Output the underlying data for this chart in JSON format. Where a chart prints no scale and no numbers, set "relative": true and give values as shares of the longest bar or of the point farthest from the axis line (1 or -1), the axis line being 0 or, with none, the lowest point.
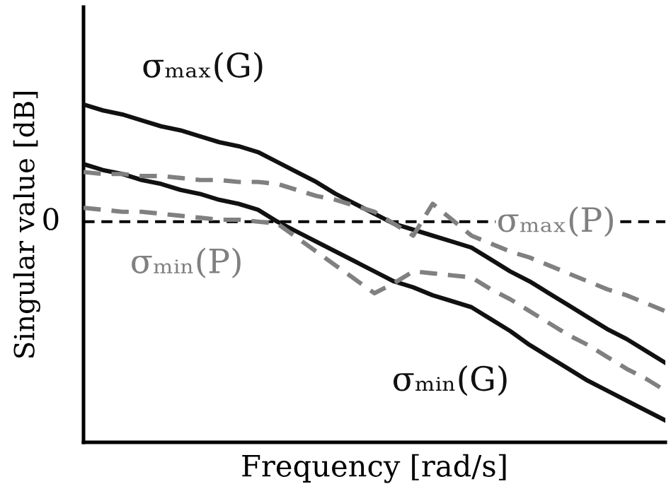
{
  "chart_data": {
    "type": "line",
    "relative": true,
    "xlabel": "Frequency [rad/s]",
    "ylabel": "Singular value [dB]",
    "marker": "none",
    "categories": [
      null,
      null,
      null,
      null,
      null,
      null,
      null,
      null,
      null,
      null,
      null,
      null,
      null,
      null,
      null,
      null,
      null,
      null,
      null,
      null,
      null,
      null,
      null,
      null,
      null,
      null,
      null,
      null,
      null,
      null,
      null
    ],
    "ref_lines": [
      {
        "axis": "y",
        "value": 0,
        "label": "0",
        "color": "#000000",
        "line_style": "dashed"
      }
    ],
    "series": [
      {
        "name": "σₘₐₓ(G)",
        "color": "#111111",
        "line_style": "solid",
        "values": [
          0.59,
          0.56,
          0.54,
          0.51,
          0.48,
          0.46,
          0.43,
          0.4,
          0.38,
          0.35,
          0.3,
          0.25,
          0.2,
          0.14,
          0.09,
          0.04,
          -0.01,
          -0.04,
          -0.07,
          -0.1,
          -0.13,
          -0.19,
          -0.25,
          -0.3,
          -0.36,
          -0.42,
          -0.48,
          -0.54,
          -0.59,
          -0.65,
          -0.71
        ]
      },
      {
        "name": "σₘᵢₙ(G)",
        "color": "#111111",
        "line_style": "solid",
        "values": [
          0.29,
          0.26,
          0.24,
          0.21,
          0.19,
          0.16,
          0.14,
          0.11,
          0.09,
          0.06,
          0,
          -0.05,
          -0.1,
          -0.15,
          -0.2,
          -0.25,
          -0.3,
          -0.33,
          -0.37,
          -0.4,
          -0.43,
          -0.49,
          -0.55,
          -0.62,
          -0.68,
          -0.74,
          -0.8,
          -0.85,
          -0.9,
          -0.95,
          -1.0
        ]
      },
      {
        "name": "σₘₐₓ(P)",
        "color": "#808080",
        "line_style": "dashed",
        "values": [
          0.25,
          0.24,
          0.24,
          0.23,
          0.23,
          0.22,
          0.21,
          0.21,
          0.2,
          0.2,
          0.19,
          0.16,
          0.13,
          0.11,
          0.08,
          0.05,
          -0.01,
          -0.07,
          0.09,
          0.01,
          -0.07,
          -0.11,
          -0.15,
          -0.18,
          -0.22,
          -0.26,
          -0.3,
          -0.34,
          -0.37,
          -0.41,
          -0.45
        ]
      },
      {
        "name": "σₘᵢₙ(P)",
        "color": "#808080",
        "line_style": "dashed",
        "values": [
          0.07,
          0.06,
          0.05,
          0.05,
          0.04,
          0.03,
          0.02,
          0.01,
          0.01,
          0.0,
          -0.01,
          -0.08,
          -0.15,
          -0.22,
          -0.29,
          -0.36,
          -0.31,
          -0.25,
          -0.26,
          -0.27,
          -0.28,
          -0.34,
          -0.39,
          -0.45,
          -0.51,
          -0.57,
          -0.62,
          -0.68,
          -0.74,
          -0.79,
          -0.85
        ]
      }
    ]
  }
}
